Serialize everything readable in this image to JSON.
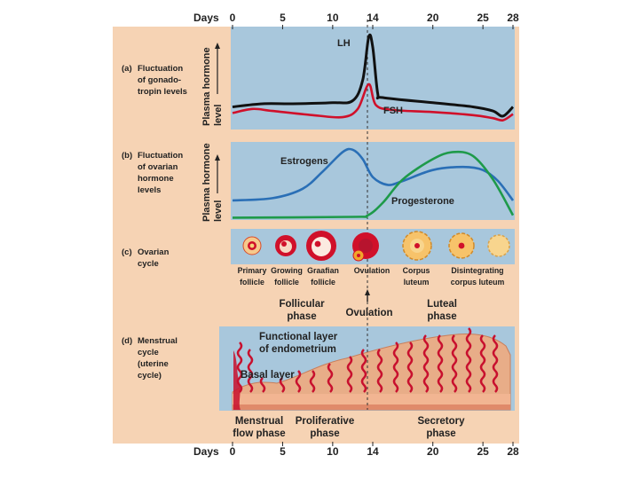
{
  "colors": {
    "panel_bg": "#f6d3b4",
    "chart_bg": "#a8c7dc",
    "lh": "#111111",
    "fsh": "#d0102a",
    "estrogen": "#2a6fb6",
    "progesterone": "#1e9a4a",
    "tissue": "#e4a27c",
    "vessel": "#c8102e"
  },
  "days": {
    "label": "Days",
    "ticks": [
      "0",
      "5",
      "10",
      "14",
      "20",
      "25",
      "28"
    ],
    "values": [
      0,
      5,
      10,
      14,
      20,
      25,
      28
    ]
  },
  "panel_a": {
    "label_prefix": "(a)",
    "label_lines": [
      "Fluctuation",
      "of gonado-",
      "tropin levels"
    ],
    "axis_lines": [
      "Plasma hormone",
      "level"
    ]
  },
  "panel_b": {
    "label_prefix": "(b)",
    "label_lines": [
      "Fluctuation",
      "of ovarian",
      "hormone",
      "levels"
    ],
    "axis_lines": [
      "Plasma hormone",
      "level"
    ]
  },
  "panel_c": {
    "label_prefix": "(c)",
    "label_lines": [
      "Ovarian",
      "cycle"
    ],
    "stages": [
      {
        "line1": "Primary",
        "line2": "follicle"
      },
      {
        "line1": "Growing",
        "line2": "follicle"
      },
      {
        "line1": "Graafian",
        "line2": "follicle"
      },
      {
        "line1": "Ovulation",
        "line2": ""
      },
      {
        "line1": "Corpus",
        "line2": "luteum"
      },
      {
        "line1": "Disintegrating",
        "line2": "corpus luteum"
      }
    ],
    "phases": {
      "follicular": [
        "Follicular",
        "phase"
      ],
      "ovulation": "Ovulation",
      "luteal": [
        "Luteal",
        "phase"
      ]
    }
  },
  "panel_d": {
    "label_prefix": "(d)",
    "label_lines": [
      "Menstrual",
      "cycle",
      "(uterine",
      "cycle)"
    ],
    "functional_layer": [
      "Functional layer",
      "of endometrium"
    ],
    "basal_layer": "Basal layer",
    "phases": {
      "menstrual": [
        "Menstrual",
        "flow phase"
      ],
      "proliferative": [
        "Proliferative",
        "phase"
      ],
      "secretory": [
        "Secretory",
        "phase"
      ]
    }
  },
  "chart_data": {
    "type": "line",
    "xlabel": "Days",
    "x_ticks": [
      0,
      5,
      10,
      14,
      20,
      25,
      28
    ],
    "charts": [
      {
        "panel": "a",
        "title": "Fluctuation of gonadotropin levels",
        "ylabel": "Plasma hormone level",
        "ylim": [
          0,
          100
        ],
        "series": [
          {
            "name": "LH",
            "points": [
              [
                0,
                22
              ],
              [
                3,
                25
              ],
              [
                6,
                25
              ],
              [
                10,
                26
              ],
              [
                12,
                28
              ],
              [
                13,
                48
              ],
              [
                13.6,
                90
              ],
              [
                14,
                80
              ],
              [
                14.5,
                35
              ],
              [
                15,
                31
              ],
              [
                20,
                26
              ],
              [
                24,
                22
              ],
              [
                26,
                18
              ],
              [
                27,
                13
              ],
              [
                28,
                22
              ]
            ]
          },
          {
            "name": "FSH",
            "points": [
              [
                0,
                16
              ],
              [
                2,
                20
              ],
              [
                4,
                18
              ],
              [
                8,
                14
              ],
              [
                11,
                12
              ],
              [
                12.5,
                20
              ],
              [
                13.6,
                44
              ],
              [
                14.3,
                24
              ],
              [
                16,
                19
              ],
              [
                20,
                17
              ],
              [
                24,
                14
              ],
              [
                26,
                11
              ],
              [
                27,
                9
              ],
              [
                28,
                15
              ]
            ]
          }
        ]
      },
      {
        "panel": "b",
        "title": "Fluctuation of ovarian hormone levels",
        "ylabel": "Plasma hormone level",
        "ylim": [
          0,
          100
        ],
        "series": [
          {
            "name": "Estrogens",
            "points": [
              [
                0,
                25
              ],
              [
                4,
                28
              ],
              [
                7,
                40
              ],
              [
                9,
                62
              ],
              [
                11,
                87
              ],
              [
                12,
                90
              ],
              [
                13,
                78
              ],
              [
                14,
                55
              ],
              [
                15.5,
                45
              ],
              [
                17,
                50
              ],
              [
                20,
                64
              ],
              [
                23,
                68
              ],
              [
                25,
                64
              ],
              [
                26.5,
                50
              ],
              [
                28,
                25
              ]
            ]
          },
          {
            "name": "Progesterone",
            "points": [
              [
                0,
                3
              ],
              [
                12,
                4
              ],
              [
                13.5,
                6
              ],
              [
                15,
                22
              ],
              [
                17,
                52
              ],
              [
                20,
                78
              ],
              [
                22,
                87
              ],
              [
                24,
                82
              ],
              [
                26,
                52
              ],
              [
                28,
                6
              ]
            ]
          }
        ]
      }
    ]
  }
}
